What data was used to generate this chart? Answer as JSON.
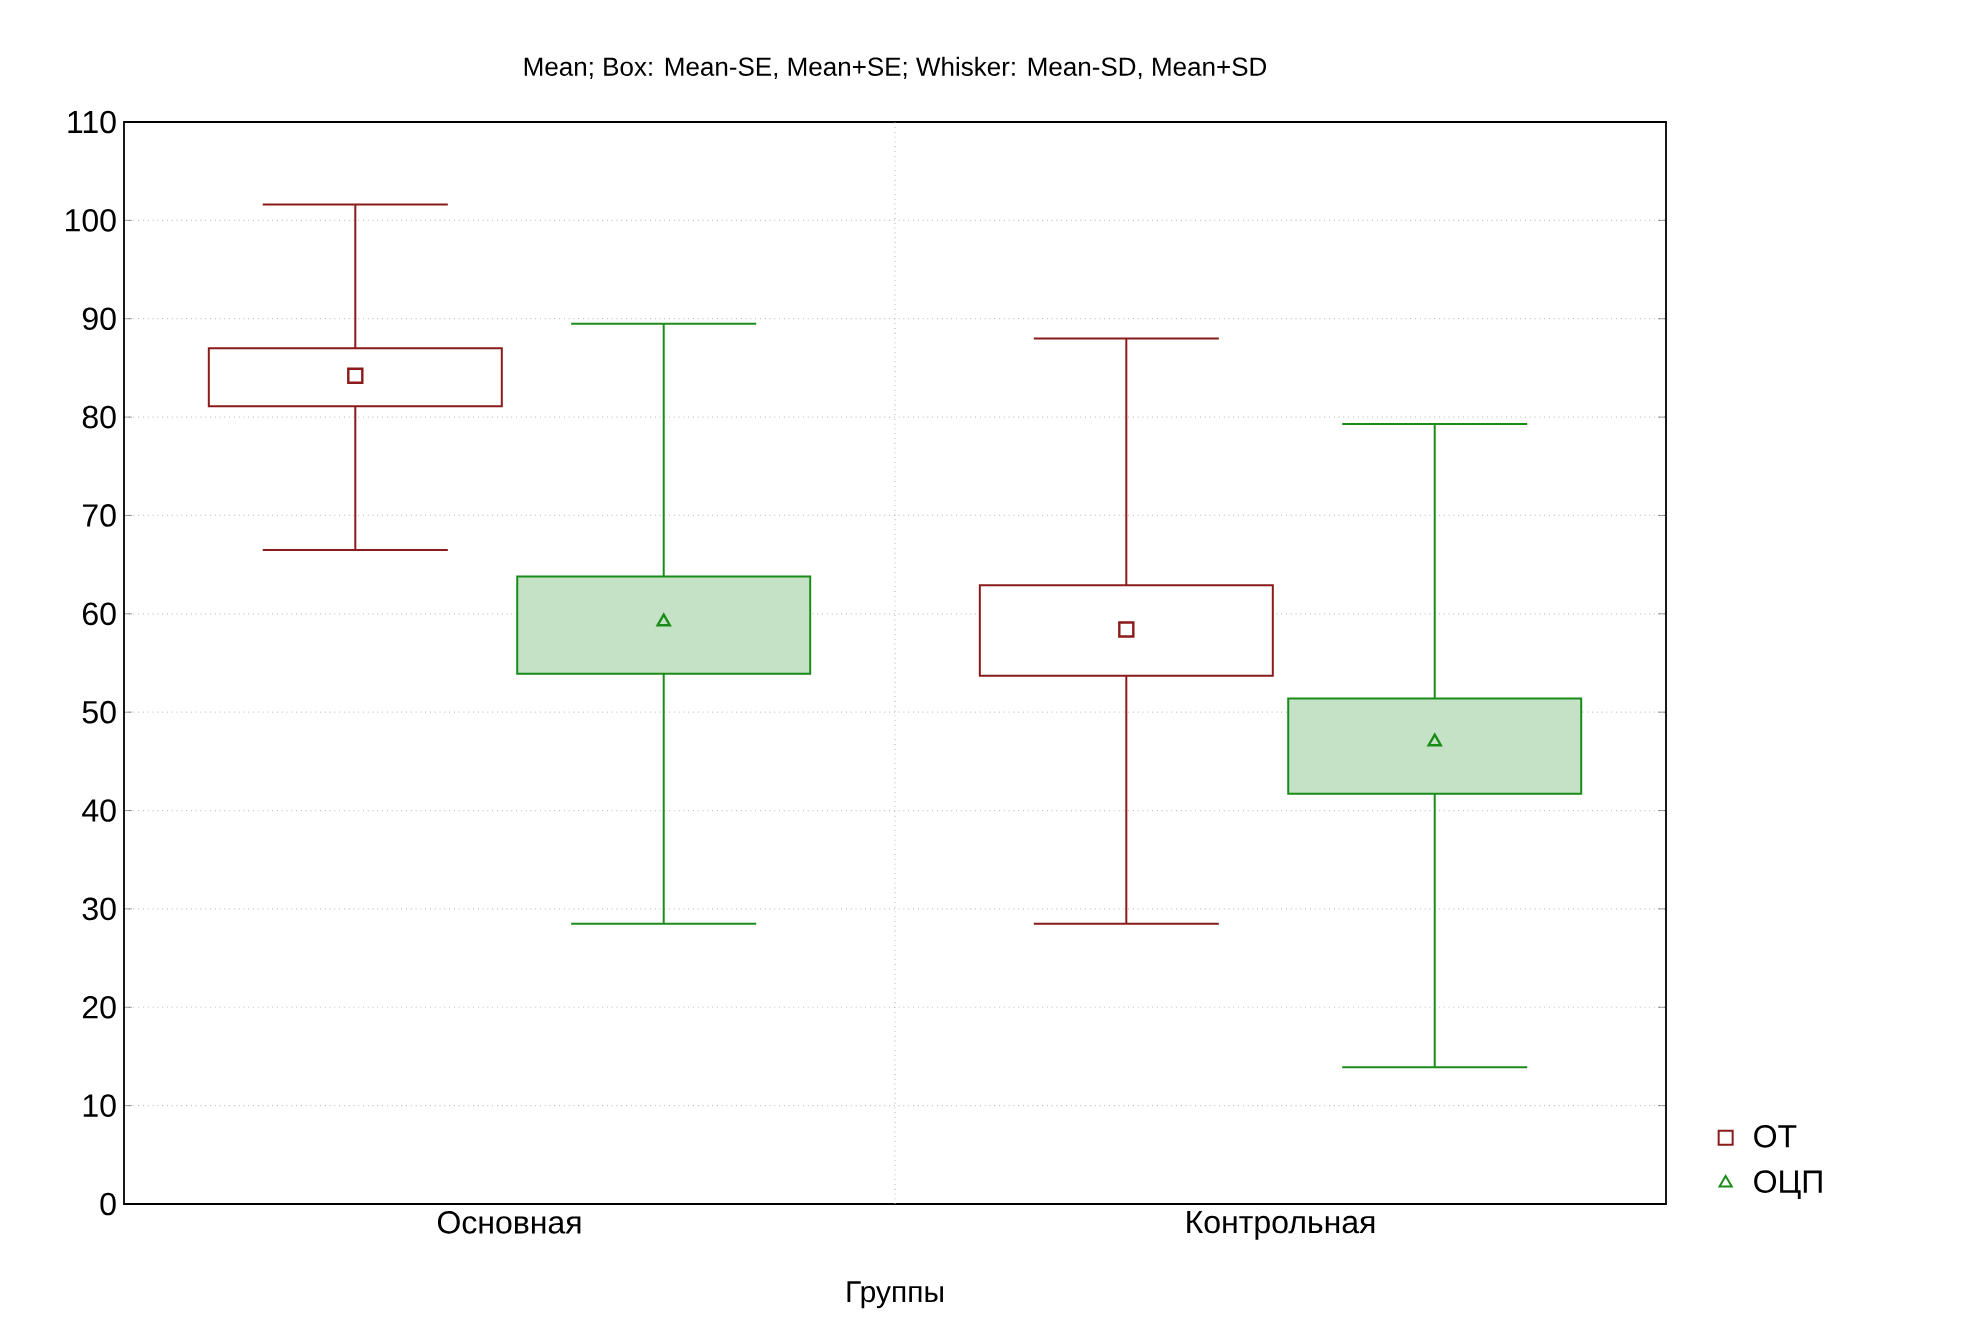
{
  "chart_data": {
    "type": "box",
    "title": "Mean; Box: Mean-SE, Mean+SE; Whisker: Mean-SD, Mean+SD",
    "xlabel": "Группы",
    "categories": [
      "Основная",
      "Контрольная"
    ],
    "series": [
      {
        "name": "ОТ",
        "color": "#8b1a1a",
        "marker": "square",
        "boxes": [
          {
            "low": 66.5,
            "q1": 81.1,
            "median": 84.2,
            "q3": 87.0,
            "high": 101.6
          },
          {
            "low": 28.5,
            "q1": 53.7,
            "median": 58.4,
            "q3": 62.9,
            "high": 88.0
          }
        ]
      },
      {
        "name": "ОЦП",
        "color": "#1a8c1a",
        "marker": "triangle",
        "boxes": [
          {
            "low": 28.5,
            "q1": 53.9,
            "median": 59.2,
            "q3": 63.8,
            "high": 89.5
          },
          {
            "low": 13.9,
            "q1": 41.7,
            "median": 47.0,
            "q3": 51.4,
            "high": 79.3
          }
        ]
      }
    ],
    "ylim": [
      0,
      110
    ],
    "yticks": [
      0,
      10,
      20,
      30,
      40,
      50,
      60,
      70,
      80,
      90,
      100,
      110
    ],
    "grid": true,
    "legend": "bottom right"
  }
}
